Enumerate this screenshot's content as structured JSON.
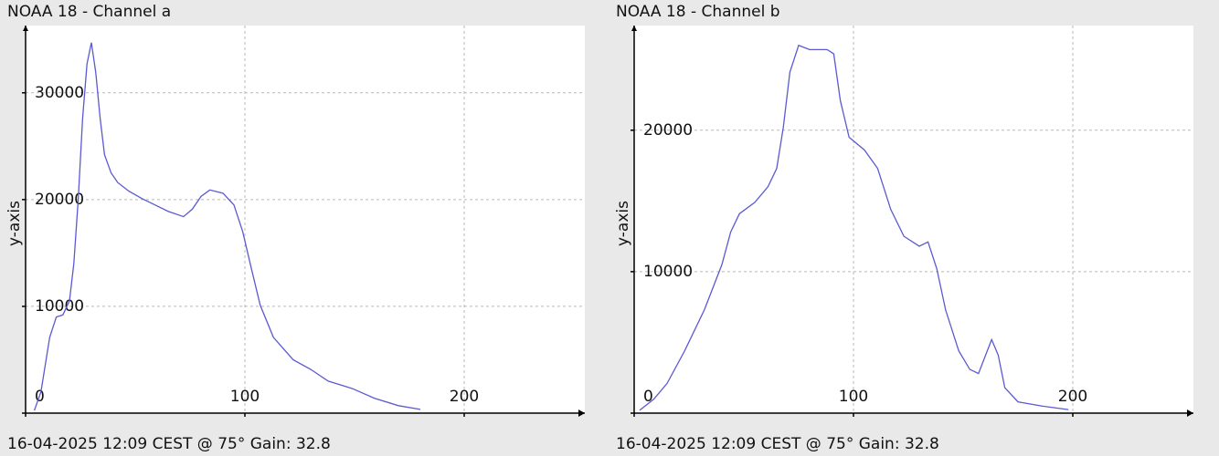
{
  "chart_data": [
    {
      "type": "line",
      "title": "NOAA 18 - Channel a",
      "y_label": "y-axis",
      "footer": "16-04-2025 12:09 CEST @ 75° Gain: 32.8",
      "xlim": [
        0,
        255
      ],
      "ylim": [
        0,
        36300
      ],
      "xticks": [
        0,
        100,
        200
      ],
      "yticks": [
        0,
        10000,
        20000,
        30000
      ],
      "grid": true,
      "series": [
        {
          "color": "#5a5ad2",
          "x": [
            4,
            7,
            11,
            14,
            17,
            20,
            22,
            24,
            26,
            28,
            30,
            32,
            34,
            36,
            39,
            42,
            47,
            53,
            59,
            65,
            72,
            76,
            80,
            84,
            90,
            95,
            99,
            103,
            107,
            113,
            122,
            130,
            138,
            149,
            159,
            170,
            180
          ],
          "values": [
            250,
            2000,
            7100,
            9000,
            9200,
            10500,
            14000,
            20000,
            27600,
            32700,
            34700,
            31900,
            27600,
            24200,
            22500,
            21600,
            20800,
            20100,
            19500,
            18900,
            18400,
            19100,
            20300,
            20900,
            20600,
            19500,
            17000,
            13500,
            10100,
            7100,
            5000,
            4100,
            3000,
            2300,
            1400,
            700,
            350
          ]
        }
      ]
    },
    {
      "type": "line",
      "title": "NOAA 18 - Channel b",
      "y_label": "y-axis",
      "footer": "16-04-2025 12:09 CEST @ 75° Gain: 32.8",
      "xlim": [
        0,
        255
      ],
      "ylim": [
        0,
        27400
      ],
      "xticks": [
        0,
        100,
        200
      ],
      "yticks": [
        0,
        10000,
        20000
      ],
      "grid": true,
      "series": [
        {
          "color": "#5a5ad2",
          "x": [
            2.5,
            9,
            15,
            23,
            32,
            40,
            44,
            48,
            55,
            61,
            65,
            68,
            71,
            75,
            80,
            84,
            88,
            91,
            94,
            98,
            105,
            111,
            117,
            123,
            130,
            134,
            138,
            142,
            148,
            153,
            157,
            161,
            163,
            166,
            169,
            175,
            186,
            198
          ],
          "values": [
            200,
            1000,
            2100,
            4400,
            7300,
            10500,
            12800,
            14100,
            14900,
            16000,
            17300,
            20200,
            24100,
            26000,
            25700,
            25700,
            25700,
            25400,
            22100,
            19500,
            18600,
            17300,
            14400,
            12500,
            11800,
            12100,
            10200,
            7300,
            4400,
            3100,
            2800,
            4400,
            5200,
            4100,
            1800,
            800,
            500,
            250
          ]
        }
      ]
    }
  ]
}
